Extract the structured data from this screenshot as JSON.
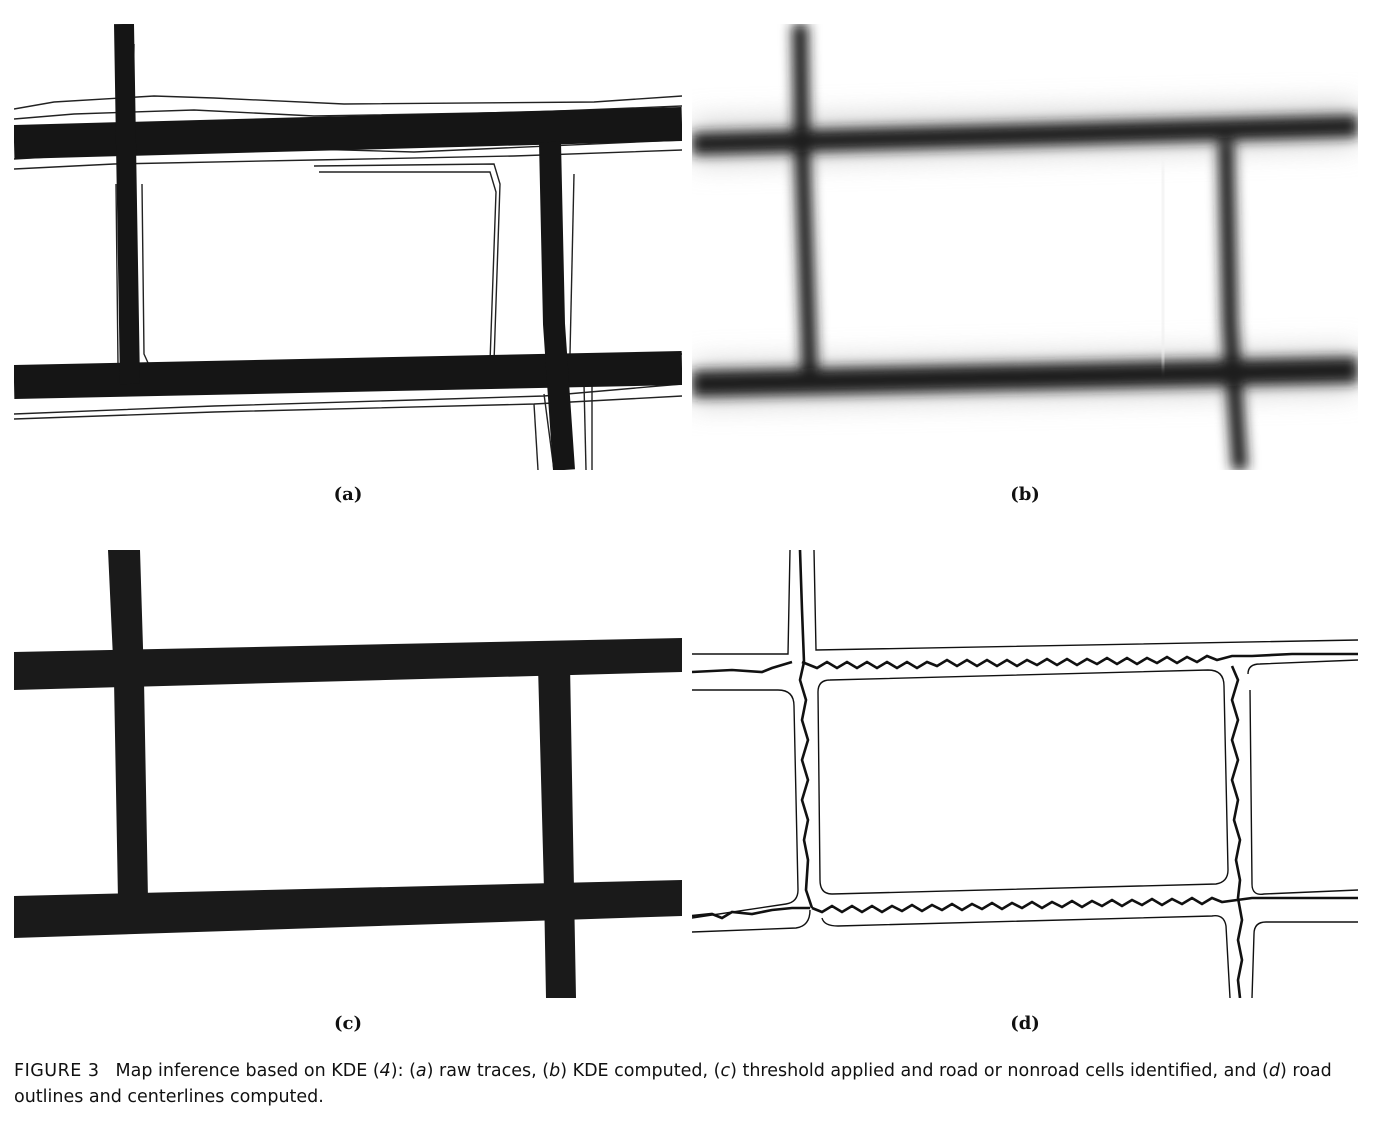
{
  "panels": [
    {
      "id": "a",
      "label": "(a)"
    },
    {
      "id": "b",
      "label": "(b)"
    },
    {
      "id": "c",
      "label": "(c)"
    },
    {
      "id": "d",
      "label": "(d)"
    }
  ],
  "caption": {
    "figure_number": "FIGURE 3",
    "text_1": "Map inference based on KDE (",
    "ref": "4",
    "text_2": "): (",
    "a_letter": "a",
    "a_text": ") raw traces, (",
    "b_letter": "b",
    "b_text": ") KDE computed, (",
    "c_letter": "c",
    "c_text": ") threshold applied and road or nonroad cells identified, and (",
    "d_letter": "d",
    "d_text": ") road outlines and centerlines computed."
  }
}
